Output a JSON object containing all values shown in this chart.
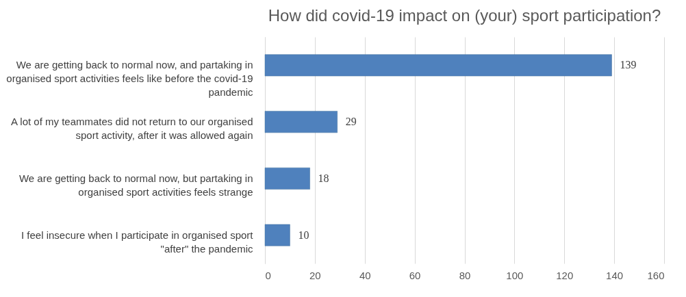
{
  "chart_data": {
    "type": "bar",
    "orientation": "horizontal",
    "title": "How did covid-19 impact on (your) sport participation?",
    "categories": [
      "We are getting back to normal now, and partaking in organised sport activities feels like before the covid-19 pandemic",
      "A lot of my teammates did not return to our organised sport activity, after it was allowed again",
      "We are getting back to normal now, but partaking in organised sport activities feels strange",
      "I feel insecure when I participate in organised sport \"after\" the pandemic"
    ],
    "values": [
      139,
      29,
      18,
      10
    ],
    "color": "#4f81bd",
    "xlim": [
      0,
      160
    ],
    "xticks": [
      0,
      20,
      40,
      60,
      80,
      100,
      120,
      140,
      160
    ],
    "grid": "x",
    "data_labels": true
  }
}
